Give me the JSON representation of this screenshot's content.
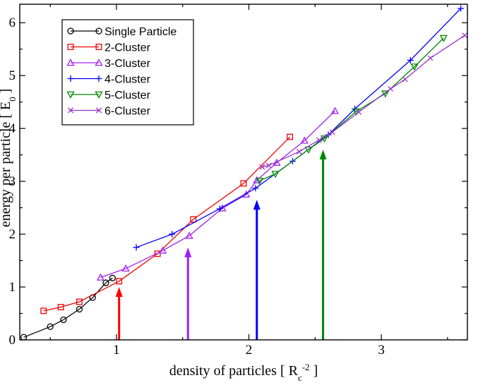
{
  "chart_data": {
    "type": "line",
    "xlabel": "density of particles",
    "xunit": {
      "base": "[ R",
      "sub": "c",
      "sup": "-2",
      "end": " ]"
    },
    "ylabel": "energy per particle",
    "yunit": {
      "base": "[ E",
      "sub": "0",
      "end": " ]"
    },
    "xlim": [
      0.27,
      3.65
    ],
    "ylim": [
      0,
      6.35
    ],
    "xticks": [
      1,
      2,
      3
    ],
    "yticks": [
      0,
      1,
      2,
      3,
      4,
      5,
      6
    ],
    "grid": false,
    "legend_position": "top-left",
    "series": [
      {
        "name": "Single Particle",
        "color": "#000000",
        "marker": "circle",
        "x": [
          0.3,
          0.5,
          0.6,
          0.72,
          0.82,
          0.92,
          0.97
        ],
        "y": [
          0.05,
          0.25,
          0.38,
          0.58,
          0.8,
          1.08,
          1.17
        ]
      },
      {
        "name": "2-Cluster",
        "color": "#ee0000",
        "marker": "square",
        "x": [
          0.45,
          0.58,
          0.72,
          1.02,
          1.31,
          1.58,
          1.96,
          2.31
        ],
        "y": [
          0.55,
          0.62,
          0.72,
          1.11,
          1.63,
          2.28,
          2.96,
          3.84
        ]
      },
      {
        "name": "3-Cluster",
        "color": "#a020f0",
        "marker": "triangle-up",
        "x": [
          0.88,
          1.07,
          1.35,
          1.55,
          1.8,
          1.98,
          2.06,
          2.21,
          2.42,
          2.65
        ],
        "y": [
          1.18,
          1.35,
          1.69,
          1.97,
          2.49,
          2.75,
          3.02,
          3.35,
          3.77,
          4.33
        ]
      },
      {
        "name": "4-Cluster",
        "color": "#0000ff",
        "marker": "plus",
        "x": [
          1.15,
          1.42,
          1.78,
          2.05,
          2.33,
          2.6,
          2.8,
          3.22,
          3.6
        ],
        "y": [
          1.75,
          2.0,
          2.48,
          2.87,
          3.38,
          3.88,
          4.37,
          5.29,
          6.27
        ]
      },
      {
        "name": "5-Cluster",
        "color": "#008800",
        "marker": "triangle-down",
        "x": [
          2.08,
          2.2,
          2.45,
          2.57,
          2.81,
          3.03,
          3.25,
          3.47
        ],
        "y": [
          3.01,
          3.14,
          3.6,
          3.81,
          4.32,
          4.66,
          5.17,
          5.71
        ]
      },
      {
        "name": "6-Cluster",
        "color": "#9932cc",
        "marker": "x",
        "x": [
          2.1,
          2.15,
          2.38,
          2.53,
          2.63,
          2.83,
          3.07,
          3.18,
          3.37,
          3.63
        ],
        "y": [
          3.27,
          3.3,
          3.56,
          3.78,
          3.93,
          4.31,
          4.75,
          4.93,
          5.33,
          5.76
        ]
      }
    ],
    "arrows": [
      {
        "x": 1.02,
        "y_from": 0.0,
        "y_to": 1.0,
        "color": "#ff0000"
      },
      {
        "x": 1.54,
        "y_from": 0.0,
        "y_to": 1.75,
        "color": "#a020f0"
      },
      {
        "x": 2.06,
        "y_from": 0.0,
        "y_to": 2.65,
        "color": "#0000ff"
      },
      {
        "x": 2.56,
        "y_from": 0.0,
        "y_to": 3.6,
        "color": "#008800"
      }
    ]
  }
}
